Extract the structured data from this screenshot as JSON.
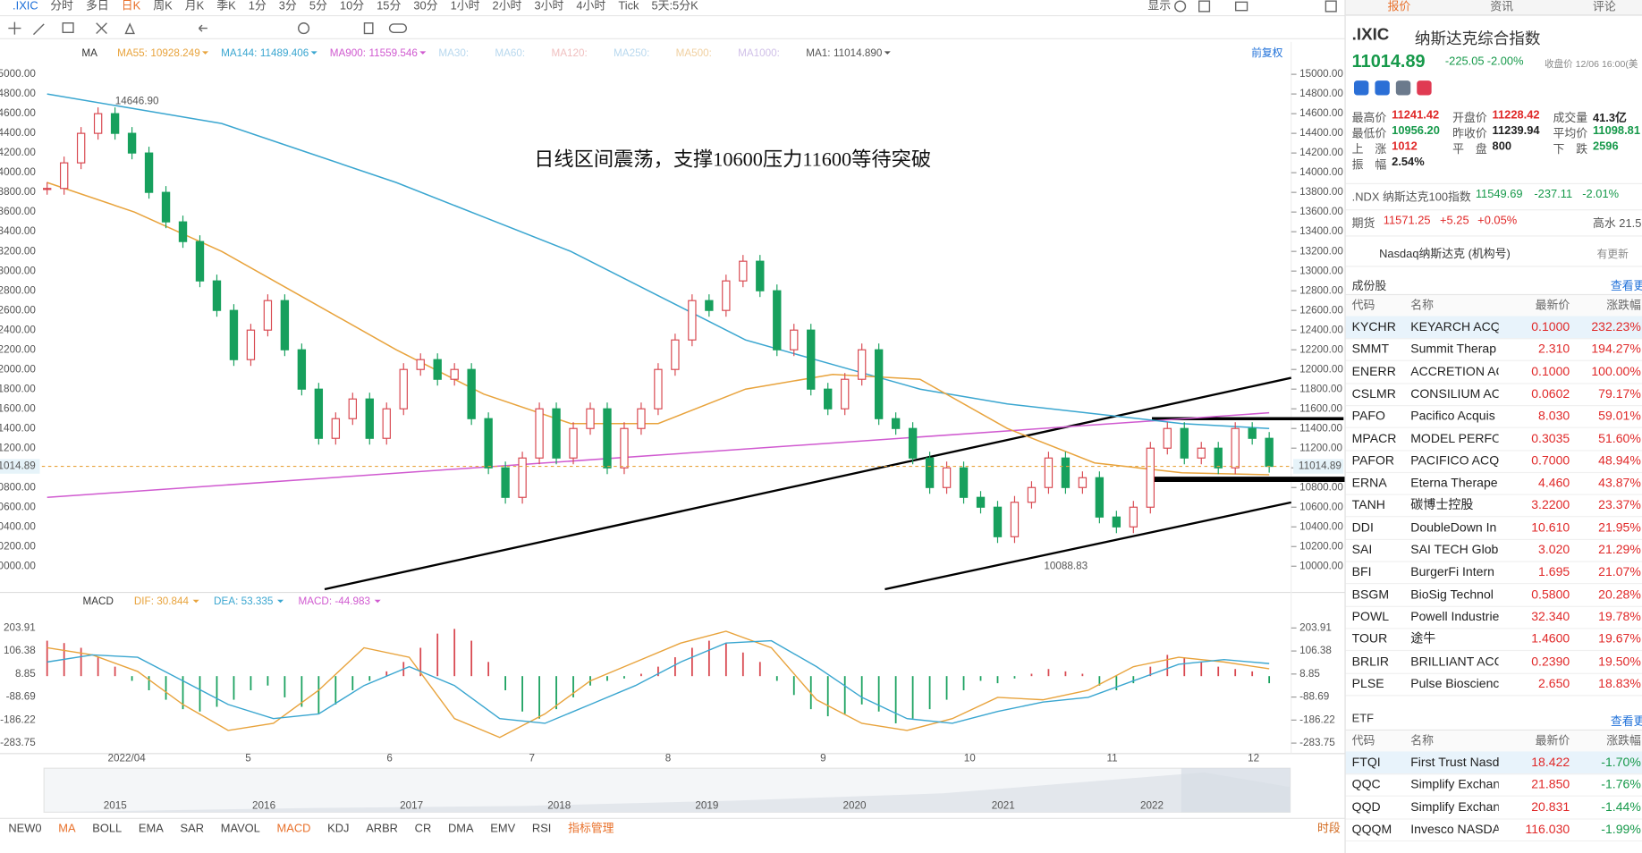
{
  "toolbar": {
    "symbol": ".IXIC",
    "periods": [
      "分时",
      "多日",
      "日K",
      "周K",
      "月K",
      "季K",
      "1分",
      "3分",
      "5分",
      "10分",
      "15分",
      "30分",
      "1小时",
      "2小时",
      "3小时",
      "4小时",
      "Tick",
      "5天:5分K"
    ],
    "display": "显示"
  },
  "ma_legend": {
    "label": "MA",
    "items": [
      {
        "name": "MA55:",
        "value": "10928.249",
        "color": "#e8a33c"
      },
      {
        "name": "MA144:",
        "value": "11489.406",
        "color": "#3aa6d0"
      },
      {
        "name": "MA900:",
        "value": "11559.546",
        "color": "#d05ad0"
      },
      {
        "name": "MA30:",
        "color": "#b8d8ee"
      },
      {
        "name": "MA60:",
        "color": "#b8d8ee"
      },
      {
        "name": "MA120:",
        "color": "#f0c0c0"
      },
      {
        "name": "MA250:",
        "color": "#b8d8ee"
      },
      {
        "name": "MA500:",
        "color": "#f0d0a0"
      },
      {
        "name": "MA1000:",
        "color": "#d0c0e8"
      },
      {
        "name": "MA1:",
        "value": "11014.890",
        "color": "#555555"
      }
    ],
    "adjust": "前复权"
  },
  "annotation": "日线区间震荡，支撑10600压力11600等待突破",
  "high_label": "14646.90",
  "low_label": "10088.83",
  "last_price": {
    "value": 11014.89,
    "label": "11014.89"
  },
  "price_chart": {
    "ylim": [
      10000,
      15000
    ],
    "yticks": [
      {
        "value": 15000,
        "label": "15000.00"
      },
      {
        "value": 14800,
        "label": "14800.00"
      },
      {
        "value": 14600,
        "label": "14600.00"
      },
      {
        "value": 14400,
        "label": "14400.00"
      },
      {
        "value": 14200,
        "label": "14200.00"
      },
      {
        "value": 14000,
        "label": "14000.00"
      },
      {
        "value": 13800,
        "label": "13800.00"
      },
      {
        "value": 13600,
        "label": "13600.00"
      },
      {
        "value": 13400,
        "label": "13400.00"
      },
      {
        "value": 13200,
        "label": "13200.00"
      },
      {
        "value": 13000,
        "label": "13000.00"
      },
      {
        "value": 12800,
        "label": "12800.00"
      },
      {
        "value": 12600,
        "label": "12600.00"
      },
      {
        "value": 12400,
        "label": "12400.00"
      },
      {
        "value": 12200,
        "label": "12200.00"
      },
      {
        "value": 12000,
        "label": "12000.00"
      },
      {
        "value": 11800,
        "label": "11800.00"
      },
      {
        "value": 11600,
        "label": "11600.00"
      },
      {
        "value": 11400,
        "label": "11400.00"
      },
      {
        "value": 11200,
        "label": "11200.00"
      },
      {
        "value": 11000,
        "label": "11000.00"
      },
      {
        "value": 10800,
        "label": "10800.00"
      },
      {
        "value": 10600,
        "label": "10600.00"
      },
      {
        "value": 10400,
        "label": "10400.00"
      },
      {
        "value": 10200,
        "label": "10200.00"
      },
      {
        "value": 10000,
        "label": "10000.00"
      }
    ],
    "closes": [
      13840,
      14100,
      14400,
      14600,
      14400,
      14200,
      13800,
      13500,
      13300,
      12900,
      12600,
      12100,
      12400,
      12700,
      12200,
      11800,
      11300,
      11500,
      11700,
      11300,
      11600,
      12000,
      12100,
      11900,
      12000,
      11500,
      11000,
      10700,
      11100,
      11600,
      11100,
      11400,
      11600,
      11000,
      11400,
      11600,
      12000,
      12300,
      12700,
      12600,
      12900,
      13100,
      12800,
      12200,
      12400,
      11800,
      11600,
      11900,
      12200,
      11500,
      11400,
      11100,
      10800,
      11000,
      10700,
      10600,
      10300,
      10650,
      10800,
      11100,
      10800,
      10900,
      10500,
      10400,
      10600,
      11200,
      11400,
      11100,
      11200,
      11000,
      11400,
      11300,
      11015
    ],
    "ma55": [
      13900,
      13600,
      13200,
      12700,
      12200,
      11750,
      11450,
      11450,
      11800,
      11950,
      11900,
      11400,
      11050,
      10950,
      10930
    ],
    "ma144": [
      14800,
      14650,
      14500,
      14200,
      13900,
      13550,
      13200,
      12750,
      12300,
      12050,
      11800,
      11650,
      11550,
      11450,
      11400
    ],
    "ma900": [
      10700,
      11560
    ]
  },
  "x_labels": [
    "2022/04",
    "5",
    "6",
    "7",
    "8",
    "9",
    "10",
    "11",
    "12"
  ],
  "macd": {
    "label": "MACD",
    "legend": [
      {
        "text": "DIF: 30.844",
        "color": "#e8a33c"
      },
      {
        "text": "DEA: 53.335",
        "color": "#3aa6d0"
      },
      {
        "text": "MACD: -44.983",
        "color": "#d05ad0"
      }
    ],
    "ylim": [
      -283.75,
      203.91
    ],
    "yticks": [
      203.91,
      106.38,
      8.85,
      -88.69,
      -186.22,
      -283.75
    ],
    "hist": [
      150,
      140,
      120,
      80,
      40,
      -20,
      -60,
      -100,
      -140,
      -150,
      -130,
      -100,
      -60,
      -40,
      -90,
      -130,
      -160,
      -120,
      -60,
      -20,
      20,
      60,
      120,
      180,
      200,
      150,
      60,
      -60,
      -150,
      -180,
      -140,
      -90,
      -40,
      -20,
      -10,
      10,
      40,
      80,
      120,
      150,
      140,
      100,
      60,
      -20,
      -80,
      -140,
      -170,
      -160,
      -120,
      -150,
      -200,
      -180,
      -140,
      -100,
      -60,
      -20,
      -30,
      -10,
      10,
      30,
      20,
      10,
      -40,
      -60,
      -30,
      40,
      90,
      80,
      60,
      40,
      30,
      20,
      -30
    ],
    "dif": [
      120,
      90,
      20,
      -120,
      -230,
      -200,
      -60,
      120,
      80,
      -180,
      -260,
      -160,
      -20,
      60,
      140,
      190,
      120,
      -100,
      -200,
      -230,
      -180,
      -90,
      -100,
      -60,
      40,
      80,
      60,
      31
    ],
    "dea": [
      60,
      90,
      80,
      -20,
      -120,
      -180,
      -160,
      -40,
      40,
      -40,
      -180,
      -200,
      -120,
      -40,
      60,
      140,
      150,
      40,
      -90,
      -180,
      -200,
      -150,
      -110,
      -90,
      -20,
      50,
      70,
      53
    ]
  },
  "navigator_years": [
    "2015",
    "2016",
    "2017",
    "2018",
    "2019",
    "2020",
    "2021",
    "2022"
  ],
  "indicators": [
    "NEW0",
    "MA",
    "BOLL",
    "EMA",
    "SAR",
    "MAVOL",
    "MACD",
    "KDJ",
    "ARBR",
    "CR",
    "DMA",
    "EMV",
    "RSI",
    "指标管理"
  ],
  "period_button": "时段",
  "panel": {
    "tabs": [
      "报价",
      "资讯",
      "评论"
    ],
    "symbol": ".IXIC",
    "name": "纳斯达克综合指数",
    "price": "11014.89",
    "change": "-225.05",
    "change_pct": "-2.00%",
    "close_time": "收盘价 12/06 16:00(美",
    "stats": [
      [
        {
          "k": "最高价",
          "v": "11241.42",
          "c": "red"
        },
        {
          "k": "开盘价",
          "v": "11228.42",
          "c": "red"
        },
        {
          "k": "成交量",
          "v": "41.3亿",
          "c": "dark"
        }
      ],
      [
        {
          "k": "最低价",
          "v": "10956.20",
          "c": "green"
        },
        {
          "k": "昨收价",
          "v": "11239.94",
          "c": "dark"
        },
        {
          "k": "平均价",
          "v": "11098.81",
          "c": "green"
        }
      ],
      [
        {
          "k": "上　涨",
          "v": "1012",
          "c": "red"
        },
        {
          "k": "平　盘",
          "v": "800",
          "c": "dark"
        },
        {
          "k": "下　跌",
          "v": "2596",
          "c": "green"
        }
      ],
      [
        {
          "k": "振　幅",
          "v": "2.54%",
          "c": "dark"
        }
      ]
    ],
    "ndx": {
      "name": ".NDX 纳斯达克100指数",
      "price": "11549.69",
      "change": "-237.11",
      "pct": "-2.01%"
    },
    "futures": {
      "name": "期货",
      "price": "11571.25",
      "change": "+5.25",
      "pct": "+0.05%",
      "extra": "高水 21.5"
    },
    "org": {
      "name": "Nasdaq纳斯达克 (机构号)",
      "status": "有更新"
    },
    "constituents": {
      "title": "成份股",
      "more": "查看更",
      "headers": [
        "代码",
        "名称",
        "最新价",
        "涨跌幅"
      ],
      "rows": [
        [
          "KYCHR",
          "KEYARCH ACQ",
          "0.1000",
          "232.23%"
        ],
        [
          "SMMT",
          "Summit Therap",
          "2.310",
          "194.27%"
        ],
        [
          "ENERR",
          "ACCRETION AC",
          "0.1000",
          "100.00%"
        ],
        [
          "CSLMR",
          "CONSILIUM AC",
          "0.0602",
          "79.17%"
        ],
        [
          "PAFO",
          "Pacifico Acquis",
          "8.030",
          "59.01%"
        ],
        [
          "MPACR",
          "MODEL PERFO",
          "0.3035",
          "51.60%"
        ],
        [
          "PAFOR",
          "PACIFICO ACQ",
          "0.7000",
          "48.94%"
        ],
        [
          "ERNA",
          "Eterna Therape",
          "4.460",
          "43.87%"
        ],
        [
          "TANH",
          "碳博士控股",
          "3.2200",
          "23.37%"
        ],
        [
          "DDI",
          "DoubleDown In",
          "10.610",
          "21.95%"
        ],
        [
          "SAI",
          "SAI TECH Globa",
          "3.020",
          "21.29%"
        ],
        [
          "BFI",
          "BurgerFi Intern",
          "1.695",
          "21.07%"
        ],
        [
          "BSGM",
          "BioSig Technol",
          "0.5800",
          "20.28%"
        ],
        [
          "POWL",
          "Powell Industrie",
          "32.340",
          "19.78%"
        ],
        [
          "TOUR",
          "途牛",
          "1.4600",
          "19.67%"
        ],
        [
          "BRLIR",
          "BRILLIANT ACC",
          "0.2390",
          "19.50%"
        ],
        [
          "PLSE",
          "Pulse Bioscienc",
          "2.650",
          "18.83%"
        ]
      ]
    },
    "etf": {
      "title": "ETF",
      "more": "查看更",
      "headers": [
        "代码",
        "名称",
        "最新价",
        "涨跌幅"
      ],
      "rows": [
        [
          "FTQI",
          "First Trust Nasdaq",
          "18.422",
          "-1.70%"
        ],
        [
          "QQC",
          "Simplify Exchange",
          "21.850",
          "-1.76%"
        ],
        [
          "QQD",
          "Simplify Exchange",
          "20.831",
          "-1.44%"
        ],
        [
          "QQQM",
          "Invesco NASDAQ",
          "116.030",
          "-1.99%"
        ]
      ]
    }
  }
}
